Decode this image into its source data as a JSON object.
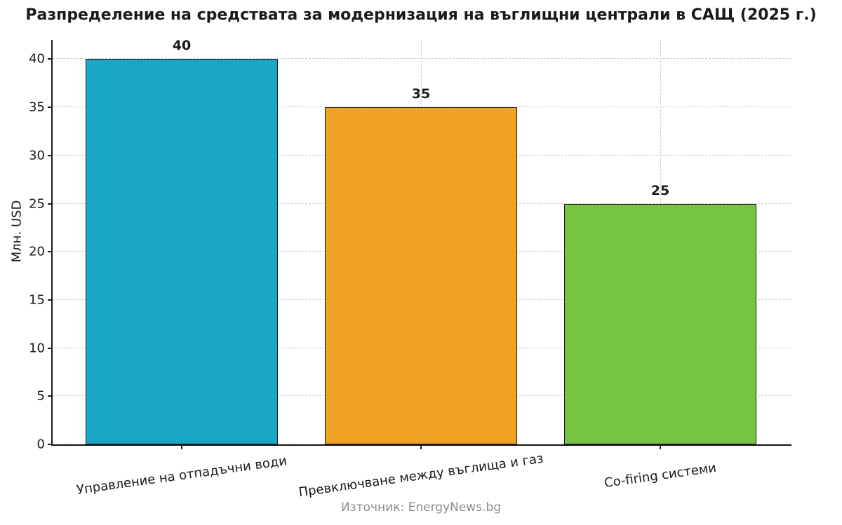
{
  "chart_data": {
    "type": "bar",
    "title": "Разпределение на средствата за модернизация на въглищни централи в САЩ (2025 г.)",
    "categories": [
      "Управление на отпадъчни води",
      "Превключване между въглища и газ",
      "Co-firing системи"
    ],
    "values": [
      40,
      35,
      25
    ],
    "value_labels": [
      "40",
      "35",
      "25"
    ],
    "bar_colors": [
      "#19a7c8",
      "#f0a223",
      "#76c442"
    ],
    "bar_edge_color": "#1a1a1a",
    "xlabel": "",
    "ylabel": "Млн. USD",
    "ylim": [
      0,
      42
    ],
    "yticks": [
      0,
      5,
      10,
      15,
      20,
      25,
      30,
      35,
      40
    ],
    "grid": true,
    "grid_style": "dashed",
    "legend_position": "none",
    "source": "Източник: EnergyNews.bg"
  }
}
